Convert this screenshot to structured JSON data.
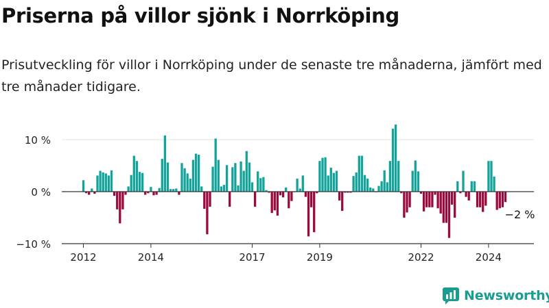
{
  "title": "Priserna på villor sjönk i Norrköping",
  "subtitle": "Prisutveckling för villor i Norrköping under de senaste tre månaderna, jämfört med tre månader tidigare.",
  "brand": {
    "name": "Newsworthy",
    "icon": "newsworthy-logo-icon"
  },
  "colors": {
    "positive": "#14a39a",
    "negative": "#9b0a3e",
    "grid": "#e3e3e3",
    "axis": "#333333",
    "brand": "#1a9c8f"
  },
  "chart_data": {
    "type": "bar",
    "x_unit": "months since 2012-01",
    "ylim": [
      -10,
      13
    ],
    "y_ticks": [
      {
        "value": 10,
        "label": "10 %"
      },
      {
        "value": 0,
        "label": "0 %"
      },
      {
        "value": -10,
        "label": "−10 %"
      }
    ],
    "x_ticks": [
      {
        "month_index": 0,
        "label": "2012"
      },
      {
        "month_index": 24,
        "label": "2014"
      },
      {
        "month_index": 60,
        "label": "2017"
      },
      {
        "month_index": 84,
        "label": "2019"
      },
      {
        "month_index": 120,
        "label": "2022"
      },
      {
        "month_index": 144,
        "label": "2024"
      }
    ],
    "grid": true,
    "annotation": {
      "label": "−2 %",
      "value": -2
    },
    "start": "2012-01",
    "values": [
      2.2,
      -0.3,
      -0.6,
      0.6,
      -0.4,
      3.1,
      4.0,
      3.7,
      3.5,
      3.1,
      4.1,
      -0.8,
      -3.4,
      -6.1,
      -3.4,
      -0.6,
      1.0,
      3.2,
      6.9,
      5.9,
      3.8,
      3.6,
      -0.6,
      -0.3,
      0.9,
      -0.7,
      -0.6,
      0.7,
      6.3,
      10.8,
      5.6,
      0.5,
      0.5,
      0.6,
      -0.6,
      5.5,
      4.5,
      3.5,
      2.5,
      6.1,
      7.3,
      7.1,
      1.0,
      -3.3,
      -8.2,
      -2.9,
      4.8,
      10.2,
      6.1,
      1.0,
      1.3,
      5.1,
      -2.9,
      4.7,
      5.5,
      1.2,
      5.8,
      4.0,
      7.8,
      5.6,
      1.8,
      -2.9,
      3.9,
      2.6,
      2.8,
      0.3,
      -0.2,
      -4.1,
      -3.6,
      -4.6,
      -0.7,
      -1.1,
      0.8,
      -3.2,
      -1.8,
      -0.1,
      2.5,
      0.6,
      3.1,
      -1.0,
      -8.6,
      -3.0,
      -7.8,
      -0.3,
      5.9,
      6.5,
      6.6,
      3.1,
      4.6,
      3.6,
      4.0,
      -1.7,
      -3.7,
      -0.2,
      -0.2,
      -0.2,
      3.0,
      3.7,
      6.9,
      6.9,
      3.2,
      2.5,
      0.8,
      0.6,
      -0.1,
      1.1,
      2.0,
      4.1,
      1.8,
      5.9,
      12.1,
      12.9,
      5.9,
      -0.3,
      -5.0,
      -4.0,
      -3.0,
      4.0,
      6.0,
      3.9,
      -0.4,
      -3.8,
      -3.0,
      -3.0,
      -3.0,
      -0.6,
      -3.2,
      -4.2,
      -6.0,
      -6.0,
      -8.9,
      -2.5,
      -5.0,
      2.0,
      -0.3,
      4.0,
      -1.0,
      -1.7,
      2.0,
      2.0,
      -3.0,
      -3.0,
      -3.9,
      -2.7,
      5.9,
      5.9,
      2.9,
      -3.5,
      -3.2,
      -3.0,
      -2.0
    ]
  }
}
